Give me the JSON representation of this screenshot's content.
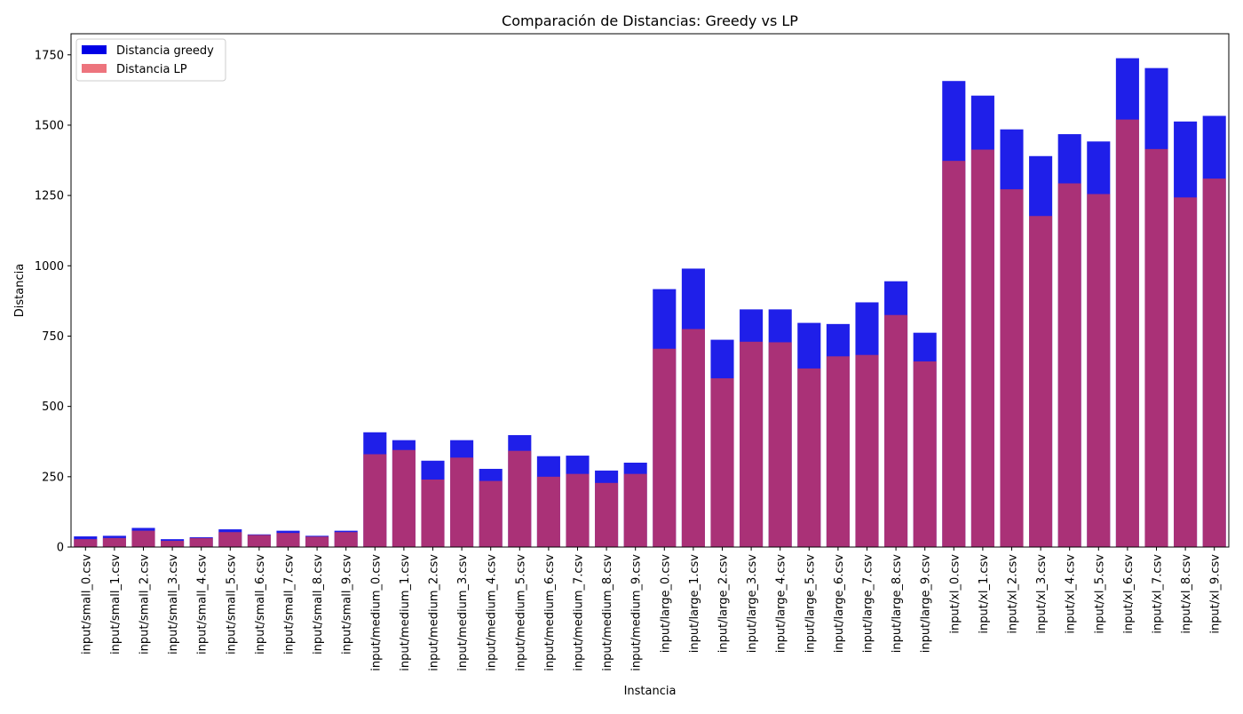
{
  "chart_data": {
    "type": "bar",
    "title": "Comparación de Distancias: Greedy vs LP",
    "xlabel": "Instancia",
    "ylabel": "Distancia",
    "ylim": [
      0,
      1825
    ],
    "yticks": [
      0,
      250,
      500,
      750,
      1000,
      1250,
      1500,
      1750
    ],
    "grid": false,
    "legend_position": "top-left",
    "overlay": true,
    "categories": [
      "input/small_0.csv",
      "input/small_1.csv",
      "input/small_2.csv",
      "input/small_3.csv",
      "input/small_4.csv",
      "input/small_5.csv",
      "input/small_6.csv",
      "input/small_7.csv",
      "input/small_8.csv",
      "input/small_9.csv",
      "input/medium_0.csv",
      "input/medium_1.csv",
      "input/medium_2.csv",
      "input/medium_3.csv",
      "input/medium_4.csv",
      "input/medium_5.csv",
      "input/medium_6.csv",
      "input/medium_7.csv",
      "input/medium_8.csv",
      "input/medium_9.csv",
      "input/large_0.csv",
      "input/large_1.csv",
      "input/large_2.csv",
      "input/large_3.csv",
      "input/large_4.csv",
      "input/large_5.csv",
      "input/large_6.csv",
      "input/large_7.csv",
      "input/large_8.csv",
      "input/large_9.csv",
      "input/xl_0.csv",
      "input/xl_1.csv",
      "input/xl_2.csv",
      "input/xl_3.csv",
      "input/xl_4.csv",
      "input/xl_5.csv",
      "input/xl_6.csv",
      "input/xl_7.csv",
      "input/xl_8.csv",
      "input/xl_9.csv"
    ],
    "series": [
      {
        "name": "Distancia greedy",
        "color": "#0000e6",
        "values": [
          38,
          40,
          68,
          28,
          35,
          63,
          45,
          58,
          40,
          58,
          408,
          380,
          307,
          380,
          278,
          398,
          323,
          325,
          272,
          300,
          917,
          990,
          737,
          845,
          845,
          797,
          793,
          870,
          945,
          762,
          1657,
          1605,
          1485,
          1390,
          1468,
          1442,
          1738,
          1703,
          1513,
          1533
        ]
      },
      {
        "name": "Distancia LP",
        "color": "#e63946",
        "values": [
          28,
          32,
          58,
          22,
          32,
          53,
          43,
          50,
          37,
          53,
          330,
          345,
          240,
          318,
          235,
          342,
          250,
          260,
          228,
          260,
          705,
          775,
          600,
          730,
          728,
          635,
          678,
          683,
          825,
          660,
          1373,
          1413,
          1272,
          1177,
          1293,
          1255,
          1520,
          1415,
          1243,
          1310
        ]
      }
    ]
  }
}
